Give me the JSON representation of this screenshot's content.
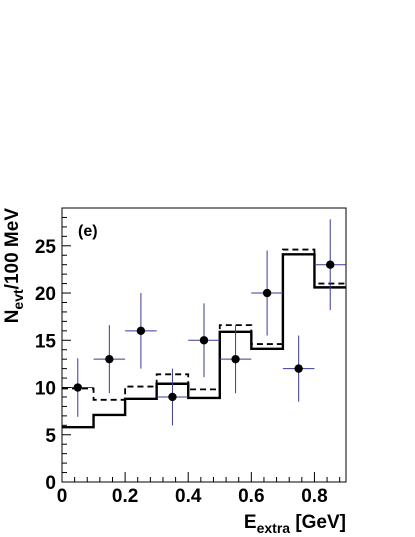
{
  "chart_data": {
    "type": "scatter",
    "title": "",
    "annotation": "(e)",
    "xlabel": {
      "main": "E",
      "sub": "extra",
      "rest": " [GeV]"
    },
    "ylabel": {
      "main": "N",
      "sub": "evt",
      "rest": "/100 MeV"
    },
    "xlim": [
      0,
      0.9
    ],
    "ylim": [
      0,
      29
    ],
    "x_ticks": [
      0,
      0.2,
      0.4,
      0.6,
      0.8
    ],
    "x_tick_labels": [
      "0",
      "0.2",
      "0.4",
      "0.6",
      "0.8"
    ],
    "y_ticks": [
      0,
      5,
      10,
      15,
      20,
      25
    ],
    "y_tick_labels": [
      "0",
      "5",
      "10",
      "15",
      "20",
      "25"
    ],
    "grid": false,
    "bin_edges": [
      0,
      0.1,
      0.2,
      0.3,
      0.4,
      0.5,
      0.6,
      0.7,
      0.8,
      0.9
    ],
    "series": [
      {
        "kind": "points",
        "x": [
          0.05,
          0.15,
          0.25,
          0.35,
          0.45,
          0.55,
          0.65,
          0.75,
          0.85
        ],
        "y": [
          10,
          13,
          16,
          9,
          15,
          13,
          20,
          12,
          23
        ],
        "err_low": [
          3.1,
          3.6,
          4.0,
          3.0,
          3.9,
          3.6,
          4.5,
          3.5,
          4.8
        ],
        "err_high": [
          3.1,
          3.6,
          4.0,
          3.0,
          3.9,
          3.6,
          4.5,
          3.5,
          4.8
        ],
        "color": "#000000",
        "error_color": "#3a3a9a"
      },
      {
        "kind": "histogram",
        "style": "solid",
        "values": [
          5.8,
          7.1,
          8.8,
          10.4,
          8.9,
          15.9,
          14.1,
          24.1,
          20.6
        ],
        "color": "#000000"
      },
      {
        "kind": "histogram",
        "style": "dashed",
        "values": [
          9.9,
          8.7,
          10.1,
          11.4,
          9.8,
          16.6,
          14.6,
          24.6,
          21.0
        ],
        "color": "#000000"
      }
    ]
  }
}
